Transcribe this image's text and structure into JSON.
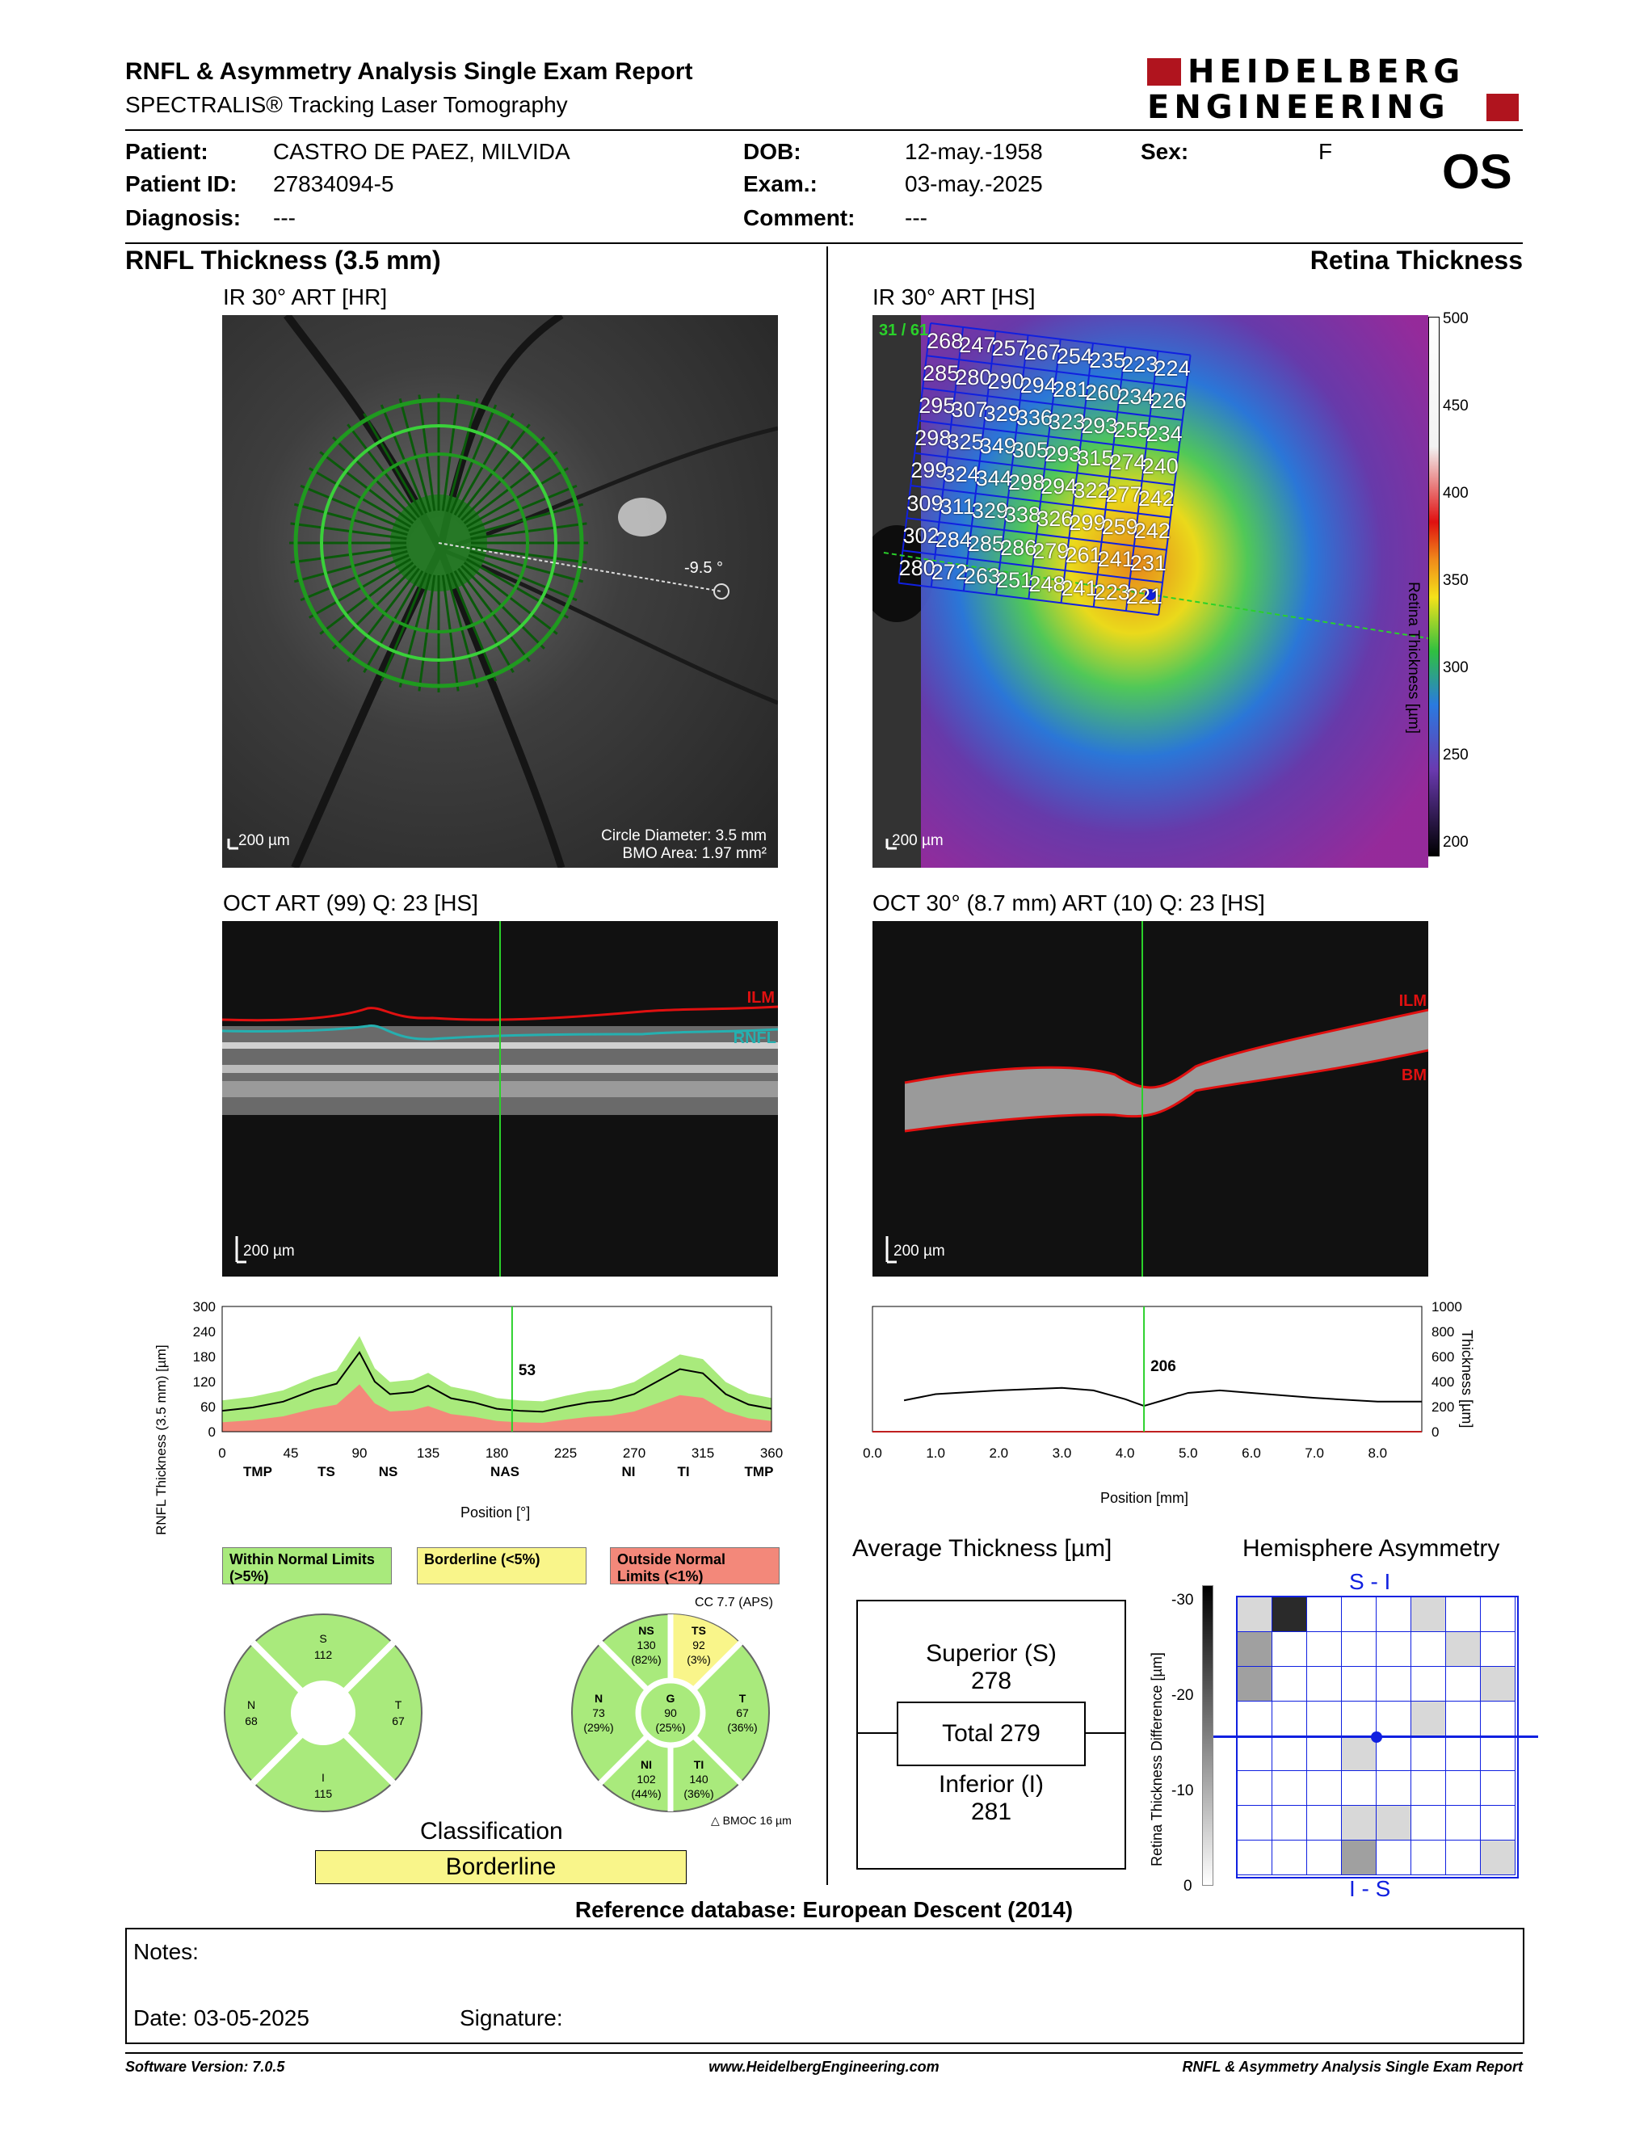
{
  "header": {
    "title": "RNFL & Asymmetry Analysis Single Exam Report",
    "subtitle": "SPECTRALIS® Tracking Laser Tomography",
    "logo_line1": "HEIDELBERG",
    "logo_line2": "ENGINEERING"
  },
  "patient": {
    "patient_label": "Patient:",
    "patient_value": "CASTRO DE PAEZ, MILVIDA",
    "id_label": "Patient ID:",
    "id_value": "27834094-5",
    "diagnosis_label": "Diagnosis:",
    "diagnosis_value": "---",
    "dob_label": "DOB:",
    "dob_value": "12-may.-1958",
    "exam_label": "Exam.:",
    "exam_value": "03-may.-2025",
    "comment_label": "Comment:",
    "comment_value": "---",
    "sex_label": "Sex:",
    "sex_value": "F",
    "eye": "OS"
  },
  "left": {
    "section_title": "RNFL Thickness (3.5 mm)",
    "ir_title": "IR 30° ART [HR]",
    "ir_scale": "200 µm",
    "ir_angle": "-9.5 °",
    "circle_diameter": "Circle Diameter: 3.5 mm",
    "bmo_area": "BMO Area: 1.97 mm²",
    "oct_title": "OCT ART (99) Q: 23 [HS]",
    "oct_scale": "200 µm",
    "oct_ilm": "ILM",
    "oct_rnfl": "RNFL",
    "plot_ylabel": "RNFL Thickness (3.5 mm) [µm]",
    "plot_xlabel": "Position [°]",
    "plot_marker_value": "53",
    "yticks": [
      "300",
      "240",
      "180",
      "120",
      "60",
      "0"
    ],
    "xticks": [
      "0",
      "45",
      "90",
      "135",
      "180",
      "225",
      "270",
      "315",
      "360"
    ],
    "sector_ticks": [
      "TMP",
      "TS",
      "NS",
      "NAS",
      "NI",
      "TI",
      "TMP"
    ],
    "legend_within": "Within Normal Limits (>5%)",
    "legend_borderline": "Borderline (<5%)",
    "legend_outside": "Outside Normal Limits (<1%)",
    "cc": "CC 7.7 (APS)",
    "bmoc": "BMOC 16 µm",
    "classification_label": "Classification",
    "classification_value": "Borderline"
  },
  "quadrants": {
    "S_label": "S",
    "S_value": "112",
    "N_label": "N",
    "N_value": "68",
    "T_label": "T",
    "T_value": "67",
    "I_label": "I",
    "I_value": "115"
  },
  "sectors": {
    "NS_label": "NS",
    "NS_value": "130",
    "NS_pct": "(82%)",
    "TS_label": "TS",
    "TS_value": "92",
    "TS_pct": "(3%)",
    "N_label": "N",
    "N_value": "73",
    "N_pct": "(29%)",
    "G_label": "G",
    "G_value": "90",
    "G_pct": "(25%)",
    "T_label": "T",
    "T_value": "67",
    "T_pct": "(36%)",
    "NI_label": "NI",
    "NI_value": "102",
    "NI_pct": "(44%)",
    "TI_label": "TI",
    "TI_value": "140",
    "TI_pct": "(36%)"
  },
  "right": {
    "section_title": "Retina Thickness",
    "ir_title": "IR 30° ART [HS]",
    "ir_scale": "200 µm",
    "grid_counter": "31 / 61",
    "colorbar_ticks": [
      "500",
      "450",
      "400",
      "350",
      "300",
      "250",
      "200"
    ],
    "colorbar_label": "Retina Thickness [µm]",
    "oct_title": "OCT 30° (8.7 mm) ART (10) Q: 23 [HS]",
    "oct_scale": "200 µm",
    "oct_ilm": "ILM",
    "oct_bm": "BM",
    "plot_ylabel": "Thickness [µm]",
    "plot_xlabel": "Position [mm]",
    "plot_marker_value": "206",
    "yticks": [
      "1000",
      "800",
      "600",
      "400",
      "200",
      "0"
    ],
    "xticks": [
      "0.0",
      "1.0",
      "2.0",
      "3.0",
      "4.0",
      "5.0",
      "6.0",
      "7.0",
      "8.0"
    ],
    "avg_title": "Average Thickness [µm]",
    "superior_label": "Superior (S)",
    "superior_value": "278",
    "total_label": "Total 279",
    "inferior_label": "Inferior (I)",
    "inferior_value": "281",
    "asym_title": "Hemisphere Asymmetry",
    "asym_top": "S - I",
    "asym_bottom": "I - S",
    "asym_ylabel": "Retina Thickness Difference [µm]",
    "asym_ticks": [
      "-30",
      "-20",
      "-10",
      "0"
    ]
  },
  "grid_values": [
    [
      268,
      247,
      257,
      267,
      254,
      235,
      223,
      224
    ],
    [
      285,
      280,
      290,
      294,
      281,
      260,
      234,
      226
    ],
    [
      295,
      307,
      329,
      336,
      323,
      293,
      255,
      234
    ],
    [
      298,
      325,
      349,
      305,
      293,
      315,
      274,
      240
    ],
    [
      299,
      324,
      344,
      298,
      294,
      322,
      277,
      242
    ],
    [
      309,
      311,
      329,
      338,
      326,
      299,
      259,
      242
    ],
    [
      302,
      284,
      285,
      286,
      279,
      261,
      241,
      231
    ],
    [
      280,
      272,
      263,
      251,
      248,
      241,
      223,
      221
    ]
  ],
  "asym_grid": [
    [
      1,
      3,
      0,
      0,
      0,
      1,
      0,
      0
    ],
    [
      2,
      0,
      0,
      0,
      0,
      0,
      1,
      0
    ],
    [
      2,
      0,
      0,
      0,
      0,
      0,
      0,
      1
    ],
    [
      0,
      0,
      0,
      0,
      0,
      1,
      0,
      0
    ],
    [
      0,
      0,
      0,
      1,
      0,
      0,
      0,
      0
    ],
    [
      0,
      0,
      0,
      0,
      0,
      0,
      0,
      0
    ],
    [
      0,
      0,
      0,
      1,
      1,
      0,
      0,
      0
    ],
    [
      0,
      0,
      0,
      2,
      0,
      0,
      0,
      1
    ]
  ],
  "chart_data": [
    {
      "type": "line",
      "title": "",
      "xlabel": "Position [°]",
      "ylabel": "RNFL Thickness (3.5 mm) [µm]",
      "xlim": [
        0,
        360
      ],
      "ylim": [
        0,
        300
      ],
      "x": [
        0,
        20,
        40,
        60,
        75,
        90,
        100,
        110,
        125,
        135,
        150,
        165,
        180,
        195,
        210,
        225,
        240,
        255,
        270,
        285,
        300,
        315,
        330,
        345,
        360
      ],
      "series": [
        {
          "values": [
            50,
            58,
            72,
            100,
            115,
            190,
            120,
            90,
            95,
            110,
            80,
            70,
            55,
            50,
            48,
            60,
            70,
            75,
            90,
            120,
            150,
            140,
            90,
            65,
            55
          ]
        }
      ],
      "marker_x": 190,
      "marker_label": "53"
    },
    {
      "type": "line",
      "title": "",
      "xlabel": "Position [mm]",
      "ylabel": "Thickness [µm]",
      "xlim": [
        0,
        8.7
      ],
      "ylim": [
        0,
        1000
      ],
      "x": [
        0.5,
        1.0,
        2.0,
        3.0,
        3.5,
        4.0,
        4.3,
        4.6,
        5.0,
        5.5,
        6.0,
        7.0,
        8.0,
        8.7
      ],
      "series": [
        {
          "values": [
            250,
            300,
            330,
            350,
            330,
            260,
            206,
            250,
            310,
            330,
            310,
            270,
            240,
            240
          ]
        }
      ],
      "marker_x": 4.3,
      "marker_label": "206"
    }
  ],
  "footer": {
    "notes_label": "Notes:",
    "date_label": "Date: 03-05-2025",
    "signature_label": "Signature:",
    "reference_db": "Reference database: European Descent (2014)",
    "software": "Software Version: 7.0.5",
    "website": "www.HeidelbergEngineering.com",
    "report_name": "RNFL & Asymmetry Analysis Single Exam Report"
  }
}
